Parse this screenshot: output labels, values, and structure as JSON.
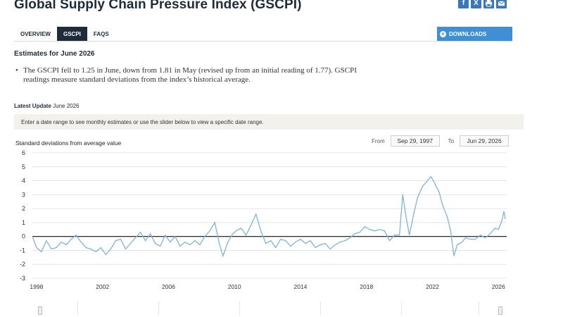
{
  "header": {
    "title": "Global Supply Chain Pressure Index (GSCPI)",
    "share": [
      {
        "icon": "facebook-icon",
        "glyph": "f"
      },
      {
        "icon": "twitter-icon",
        "glyph": "X"
      },
      {
        "icon": "print-icon",
        "glyph": ""
      },
      {
        "icon": "email-icon",
        "glyph": ""
      }
    ]
  },
  "tabs": [
    {
      "label": "OVERVIEW",
      "active": false
    },
    {
      "label": "GSCPI",
      "active": true
    },
    {
      "label": "FAQS",
      "active": false
    }
  ],
  "downloads_label": "DOWNLOADS",
  "estimates_title": "Estimates for June 2026",
  "bullet_text": "The GSCPI fell to 1.25 in June, down from 1.81 in May (revised up from an initial reading of 1.77). GSCPI readings measure standard deviations from the index’s historical average.",
  "latest_update": {
    "label": "Latest Update",
    "value": "June 2026"
  },
  "info_text": "Enter a date range to see monthly estimates or use the slider below to view a specific date range.",
  "range": {
    "from_label": "From",
    "from_value": "Sep 29, 1997",
    "to_label": "To",
    "to_value": "Jun 29, 2026"
  },
  "colors": {
    "accent": "#3e8fd6",
    "line": "#7fb3e0",
    "dark": "#1d2b3a"
  },
  "chart_data": {
    "type": "line",
    "ylabel": "Standard deviations from average value",
    "ylim": [
      -3,
      6
    ],
    "yticks": [
      6,
      5,
      4,
      3,
      2,
      1,
      0,
      -1,
      -2,
      -3
    ],
    "xlim": [
      1997.75,
      2026.5
    ],
    "xticks": [
      "1998",
      "2002",
      "2006",
      "2010",
      "2014",
      "2018",
      "2022",
      "2026"
    ],
    "series": [
      {
        "values": [
          [
            1997.75,
            0.0
          ],
          [
            1998.0,
            -0.8
          ],
          [
            1998.3,
            -1.1
          ],
          [
            1998.6,
            -0.3
          ],
          [
            1998.9,
            -0.9
          ],
          [
            1999.2,
            -0.8
          ],
          [
            1999.5,
            -0.4
          ],
          [
            1999.8,
            -0.6
          ],
          [
            2000.1,
            -0.2
          ],
          [
            2000.4,
            0.1
          ],
          [
            2000.7,
            -0.4
          ],
          [
            2001.0,
            -0.8
          ],
          [
            2001.3,
            -0.9
          ],
          [
            2001.6,
            -1.1
          ],
          [
            2001.9,
            -0.8
          ],
          [
            2002.2,
            -1.3
          ],
          [
            2002.5,
            -0.9
          ],
          [
            2002.8,
            -0.3
          ],
          [
            2003.1,
            -0.2
          ],
          [
            2003.4,
            -0.9
          ],
          [
            2003.7,
            -0.5
          ],
          [
            2004.0,
            -0.1
          ],
          [
            2004.3,
            0.3
          ],
          [
            2004.6,
            -0.3
          ],
          [
            2004.9,
            0.2
          ],
          [
            2005.2,
            -0.5
          ],
          [
            2005.5,
            -0.7
          ],
          [
            2005.8,
            0.1
          ],
          [
            2006.1,
            -0.4
          ],
          [
            2006.4,
            0.0
          ],
          [
            2006.7,
            -0.7
          ],
          [
            2007.0,
            -0.4
          ],
          [
            2007.3,
            -0.6
          ],
          [
            2007.6,
            -0.3
          ],
          [
            2007.9,
            -0.6
          ],
          [
            2008.2,
            0.0
          ],
          [
            2008.5,
            0.4
          ],
          [
            2008.8,
            1.0
          ],
          [
            2009.1,
            -0.6
          ],
          [
            2009.3,
            -1.4
          ],
          [
            2009.6,
            -0.4
          ],
          [
            2009.9,
            0.2
          ],
          [
            2010.1,
            0.4
          ],
          [
            2010.4,
            0.6
          ],
          [
            2010.7,
            0.1
          ],
          [
            2011.0,
            0.8
          ],
          [
            2011.3,
            1.6
          ],
          [
            2011.6,
            0.4
          ],
          [
            2011.9,
            -0.5
          ],
          [
            2012.2,
            -0.3
          ],
          [
            2012.5,
            -0.8
          ],
          [
            2012.8,
            -0.2
          ],
          [
            2013.1,
            -0.3
          ],
          [
            2013.4,
            -0.7
          ],
          [
            2013.7,
            -0.4
          ],
          [
            2014.0,
            -0.2
          ],
          [
            2014.3,
            -0.5
          ],
          [
            2014.6,
            -0.3
          ],
          [
            2014.9,
            -0.8
          ],
          [
            2015.2,
            -0.6
          ],
          [
            2015.5,
            -0.5
          ],
          [
            2015.8,
            -0.9
          ],
          [
            2016.1,
            -0.6
          ],
          [
            2016.4,
            -0.4
          ],
          [
            2016.7,
            -0.3
          ],
          [
            2017.0,
            -0.1
          ],
          [
            2017.3,
            0.2
          ],
          [
            2017.6,
            0.3
          ],
          [
            2017.9,
            0.7
          ],
          [
            2018.2,
            0.5
          ],
          [
            2018.5,
            0.4
          ],
          [
            2018.8,
            0.5
          ],
          [
            2019.1,
            0.4
          ],
          [
            2019.4,
            -0.3
          ],
          [
            2019.7,
            0.1
          ],
          [
            2020.0,
            0.1
          ],
          [
            2020.2,
            3.0
          ],
          [
            2020.4,
            1.4
          ],
          [
            2020.6,
            0.1
          ],
          [
            2020.9,
            1.8
          ],
          [
            2021.1,
            2.8
          ],
          [
            2021.4,
            3.6
          ],
          [
            2021.7,
            4.0
          ],
          [
            2021.9,
            4.3
          ],
          [
            2022.1,
            3.9
          ],
          [
            2022.4,
            3.2
          ],
          [
            2022.6,
            2.3
          ],
          [
            2022.9,
            1.4
          ],
          [
            2023.1,
            0.4
          ],
          [
            2023.3,
            -1.4
          ],
          [
            2023.5,
            -0.6
          ],
          [
            2023.8,
            -0.4
          ],
          [
            2024.0,
            -0.1
          ],
          [
            2024.3,
            -0.2
          ],
          [
            2024.6,
            -0.2
          ],
          [
            2024.9,
            0.1
          ],
          [
            2025.2,
            -0.1
          ],
          [
            2025.5,
            0.2
          ],
          [
            2025.8,
            0.6
          ],
          [
            2026.0,
            0.5
          ],
          [
            2026.2,
            1.1
          ],
          [
            2026.33,
            1.81
          ],
          [
            2026.42,
            1.25
          ]
        ]
      }
    ]
  }
}
